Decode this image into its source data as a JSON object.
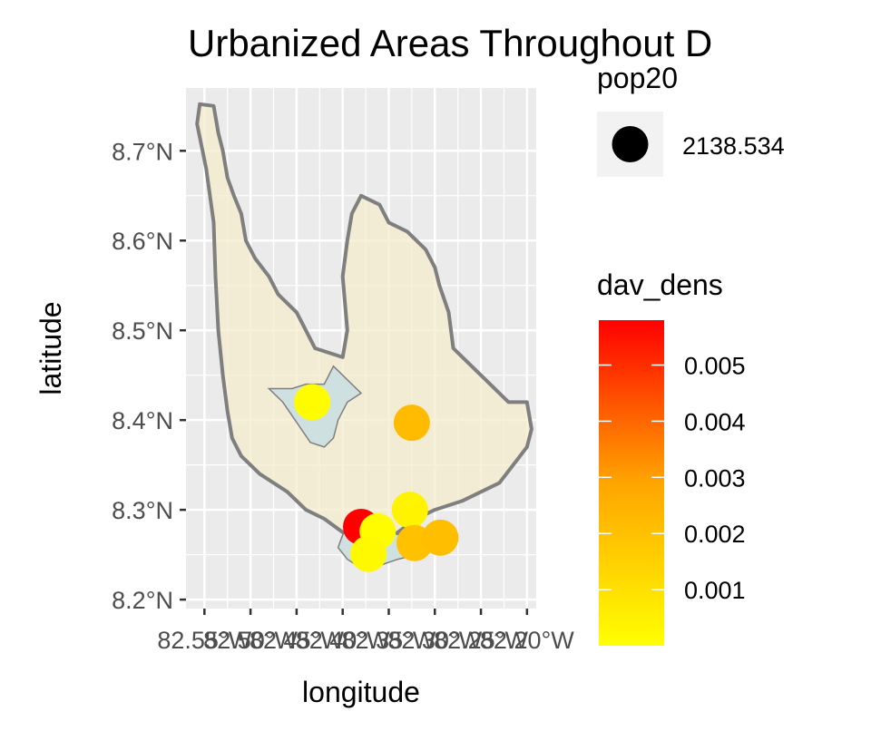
{
  "chart_data": {
    "type": "scatter",
    "title": "Urbanized Areas Throughout D",
    "xlabel": "longitude",
    "ylabel": "latitude",
    "xlim": [
      -82.57,
      -82.19
    ],
    "ylim": [
      8.19,
      8.77
    ],
    "x_ticks": [
      {
        "value": -82.55,
        "label": "82.55°W"
      },
      {
        "value": -82.5,
        "label": "82.50°W"
      },
      {
        "value": -82.45,
        "label": "82.45°W"
      },
      {
        "value": -82.4,
        "label": "82.40°W"
      },
      {
        "value": -82.35,
        "label": "82.35°W"
      },
      {
        "value": -82.3,
        "label": "82.30°W"
      },
      {
        "value": -82.25,
        "label": "82.25°W"
      },
      {
        "value": -82.2,
        "label": "82.20°W"
      }
    ],
    "y_ticks": [
      {
        "value": 8.2,
        "label": "8.2°N"
      },
      {
        "value": 8.3,
        "label": "8.3°N"
      },
      {
        "value": 8.4,
        "label": "8.4°N"
      },
      {
        "value": 8.5,
        "label": "8.5°N"
      },
      {
        "value": 8.6,
        "label": "8.6°N"
      },
      {
        "value": 8.7,
        "label": "8.7°N"
      }
    ],
    "grid": true,
    "points": [
      {
        "lon": -82.433,
        "lat": 8.42,
        "dav_dens": 0.0001
      },
      {
        "lon": -82.325,
        "lat": 8.397,
        "dav_dens": 0.0022
      },
      {
        "lon": -82.38,
        "lat": 8.281,
        "dav_dens": 0.0058
      },
      {
        "lon": -82.362,
        "lat": 8.276,
        "dav_dens": 0.0001
      },
      {
        "lon": -82.372,
        "lat": 8.251,
        "dav_dens": 0.0002
      },
      {
        "lon": -82.327,
        "lat": 8.3,
        "dav_dens": 0.0004
      },
      {
        "lon": -82.322,
        "lat": 8.263,
        "dav_dens": 0.002
      },
      {
        "lon": -82.294,
        "lat": 8.269,
        "dav_dens": 0.0021
      }
    ],
    "district_outline": [
      [
        -82.555,
        8.752
      ],
      [
        -82.54,
        8.75
      ],
      [
        -82.535,
        8.72
      ],
      [
        -82.53,
        8.7
      ],
      [
        -82.525,
        8.67
      ],
      [
        -82.518,
        8.65
      ],
      [
        -82.51,
        8.63
      ],
      [
        -82.505,
        8.6
      ],
      [
        -82.495,
        8.58
      ],
      [
        -82.48,
        8.56
      ],
      [
        -82.47,
        8.54
      ],
      [
        -82.45,
        8.52
      ],
      [
        -82.44,
        8.5
      ],
      [
        -82.43,
        8.48
      ],
      [
        -82.4,
        8.47
      ],
      [
        -82.395,
        8.5
      ],
      [
        -82.4,
        8.56
      ],
      [
        -82.395,
        8.6
      ],
      [
        -82.39,
        8.63
      ],
      [
        -82.38,
        8.65
      ],
      [
        -82.36,
        8.64
      ],
      [
        -82.35,
        8.62
      ],
      [
        -82.33,
        8.61
      ],
      [
        -82.31,
        8.59
      ],
      [
        -82.3,
        8.57
      ],
      [
        -82.295,
        8.55
      ],
      [
        -82.285,
        8.52
      ],
      [
        -82.28,
        8.48
      ],
      [
        -82.26,
        8.46
      ],
      [
        -82.24,
        8.44
      ],
      [
        -82.22,
        8.42
      ],
      [
        -82.2,
        8.42
      ],
      [
        -82.195,
        8.39
      ],
      [
        -82.2,
        8.37
      ],
      [
        -82.215,
        8.35
      ],
      [
        -82.23,
        8.33
      ],
      [
        -82.25,
        8.32
      ],
      [
        -82.27,
        8.31
      ],
      [
        -82.3,
        8.3
      ],
      [
        -82.32,
        8.29
      ],
      [
        -82.34,
        8.275
      ],
      [
        -82.36,
        8.265
      ],
      [
        -82.38,
        8.26
      ],
      [
        -82.4,
        8.275
      ],
      [
        -82.42,
        8.29
      ],
      [
        -82.44,
        8.3
      ],
      [
        -82.46,
        8.32
      ],
      [
        -82.49,
        8.34
      ],
      [
        -82.51,
        8.36
      ],
      [
        -82.52,
        8.38
      ],
      [
        -82.525,
        8.41
      ],
      [
        -82.53,
        8.45
      ],
      [
        -82.535,
        8.5
      ],
      [
        -82.538,
        8.56
      ],
      [
        -82.54,
        8.62
      ],
      [
        -82.548,
        8.68
      ],
      [
        -82.558,
        8.73
      ]
    ],
    "urban_areas": [
      [
        [
          -82.48,
          8.435
        ],
        [
          -82.455,
          8.435
        ],
        [
          -82.44,
          8.44
        ],
        [
          -82.42,
          8.44
        ],
        [
          -82.41,
          8.46
        ],
        [
          -82.4,
          8.45
        ],
        [
          -82.39,
          8.44
        ],
        [
          -82.38,
          8.43
        ],
        [
          -82.395,
          8.42
        ],
        [
          -82.405,
          8.4
        ],
        [
          -82.41,
          8.38
        ],
        [
          -82.42,
          8.37
        ],
        [
          -82.435,
          8.375
        ],
        [
          -82.445,
          8.39
        ],
        [
          -82.455,
          8.405
        ],
        [
          -82.465,
          8.42
        ]
      ],
      [
        [
          -82.39,
          8.285
        ],
        [
          -82.37,
          8.28
        ],
        [
          -82.35,
          8.275
        ],
        [
          -82.33,
          8.27
        ],
        [
          -82.31,
          8.262
        ],
        [
          -82.32,
          8.25
        ],
        [
          -82.34,
          8.245
        ],
        [
          -82.36,
          8.238
        ],
        [
          -82.38,
          8.235
        ],
        [
          -82.395,
          8.245
        ],
        [
          -82.405,
          8.258
        ],
        [
          -82.4,
          8.272
        ]
      ]
    ]
  },
  "legend": {
    "size_title": "pop20",
    "size_label": "2138.534",
    "color_title": "dav_dens",
    "color_range": [
      0,
      0.0058
    ],
    "color_ticks": [
      {
        "value": 0.005,
        "label": "0.005"
      },
      {
        "value": 0.004,
        "label": "0.004"
      },
      {
        "value": 0.003,
        "label": "0.003"
      },
      {
        "value": 0.002,
        "label": "0.002"
      },
      {
        "value": 0.001,
        "label": "0.001"
      }
    ],
    "low_color": "#ffff00",
    "mid_color": "#ffa500",
    "high_color": "#ff0000"
  },
  "colors": {
    "panel": "#ebebeb",
    "grid": "#ffffff",
    "district_fill": "#f5eccd",
    "district_stroke": "#7f7f7f",
    "urban_fill": "#cfe0e1",
    "urban_stroke": "#7f7f7f"
  }
}
